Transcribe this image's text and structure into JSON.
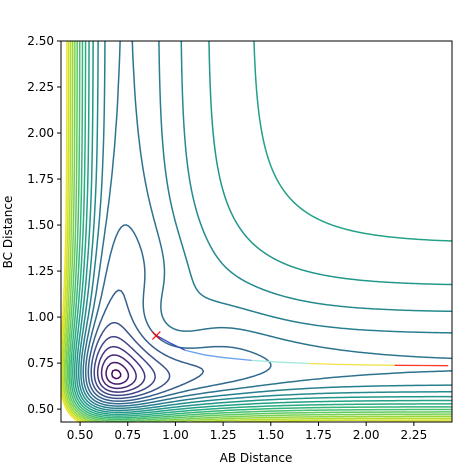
{
  "chart_data": {
    "type": "contour",
    "xlabel": "AB Distance",
    "ylabel": "BC Distance",
    "xlim": [
      0.4,
      2.45
    ],
    "ylim": [
      0.43,
      2.5
    ],
    "xticks": [
      "0.50",
      "0.75",
      "1.00",
      "1.25",
      "1.50",
      "1.75",
      "2.00",
      "2.25"
    ],
    "yticks": [
      "0.50",
      "0.75",
      "1.00",
      "1.25",
      "1.50",
      "1.75",
      "2.00",
      "2.25",
      "2.50"
    ],
    "colormap": "viridis",
    "contour_levels": 22,
    "grid": false,
    "start_marker": {
      "x": 0.9,
      "y": 0.9,
      "symbol": "x",
      "color": "#ff0000"
    },
    "trajectory": {
      "colors": [
        "#3b4cc0",
        "#6aa0ee",
        "#9fe8e0",
        "#f2e24a",
        "#ff3a2a"
      ],
      "points": [
        [
          0.9,
          0.9
        ],
        [
          0.97,
          0.86
        ],
        [
          1.05,
          0.82
        ],
        [
          1.15,
          0.795
        ],
        [
          1.25,
          0.78
        ],
        [
          1.4,
          0.765
        ],
        [
          1.55,
          0.755
        ],
        [
          1.7,
          0.748
        ],
        [
          1.85,
          0.743
        ],
        [
          2.0,
          0.74
        ],
        [
          2.15,
          0.738
        ],
        [
          2.3,
          0.737
        ],
        [
          2.43,
          0.736
        ]
      ]
    }
  }
}
